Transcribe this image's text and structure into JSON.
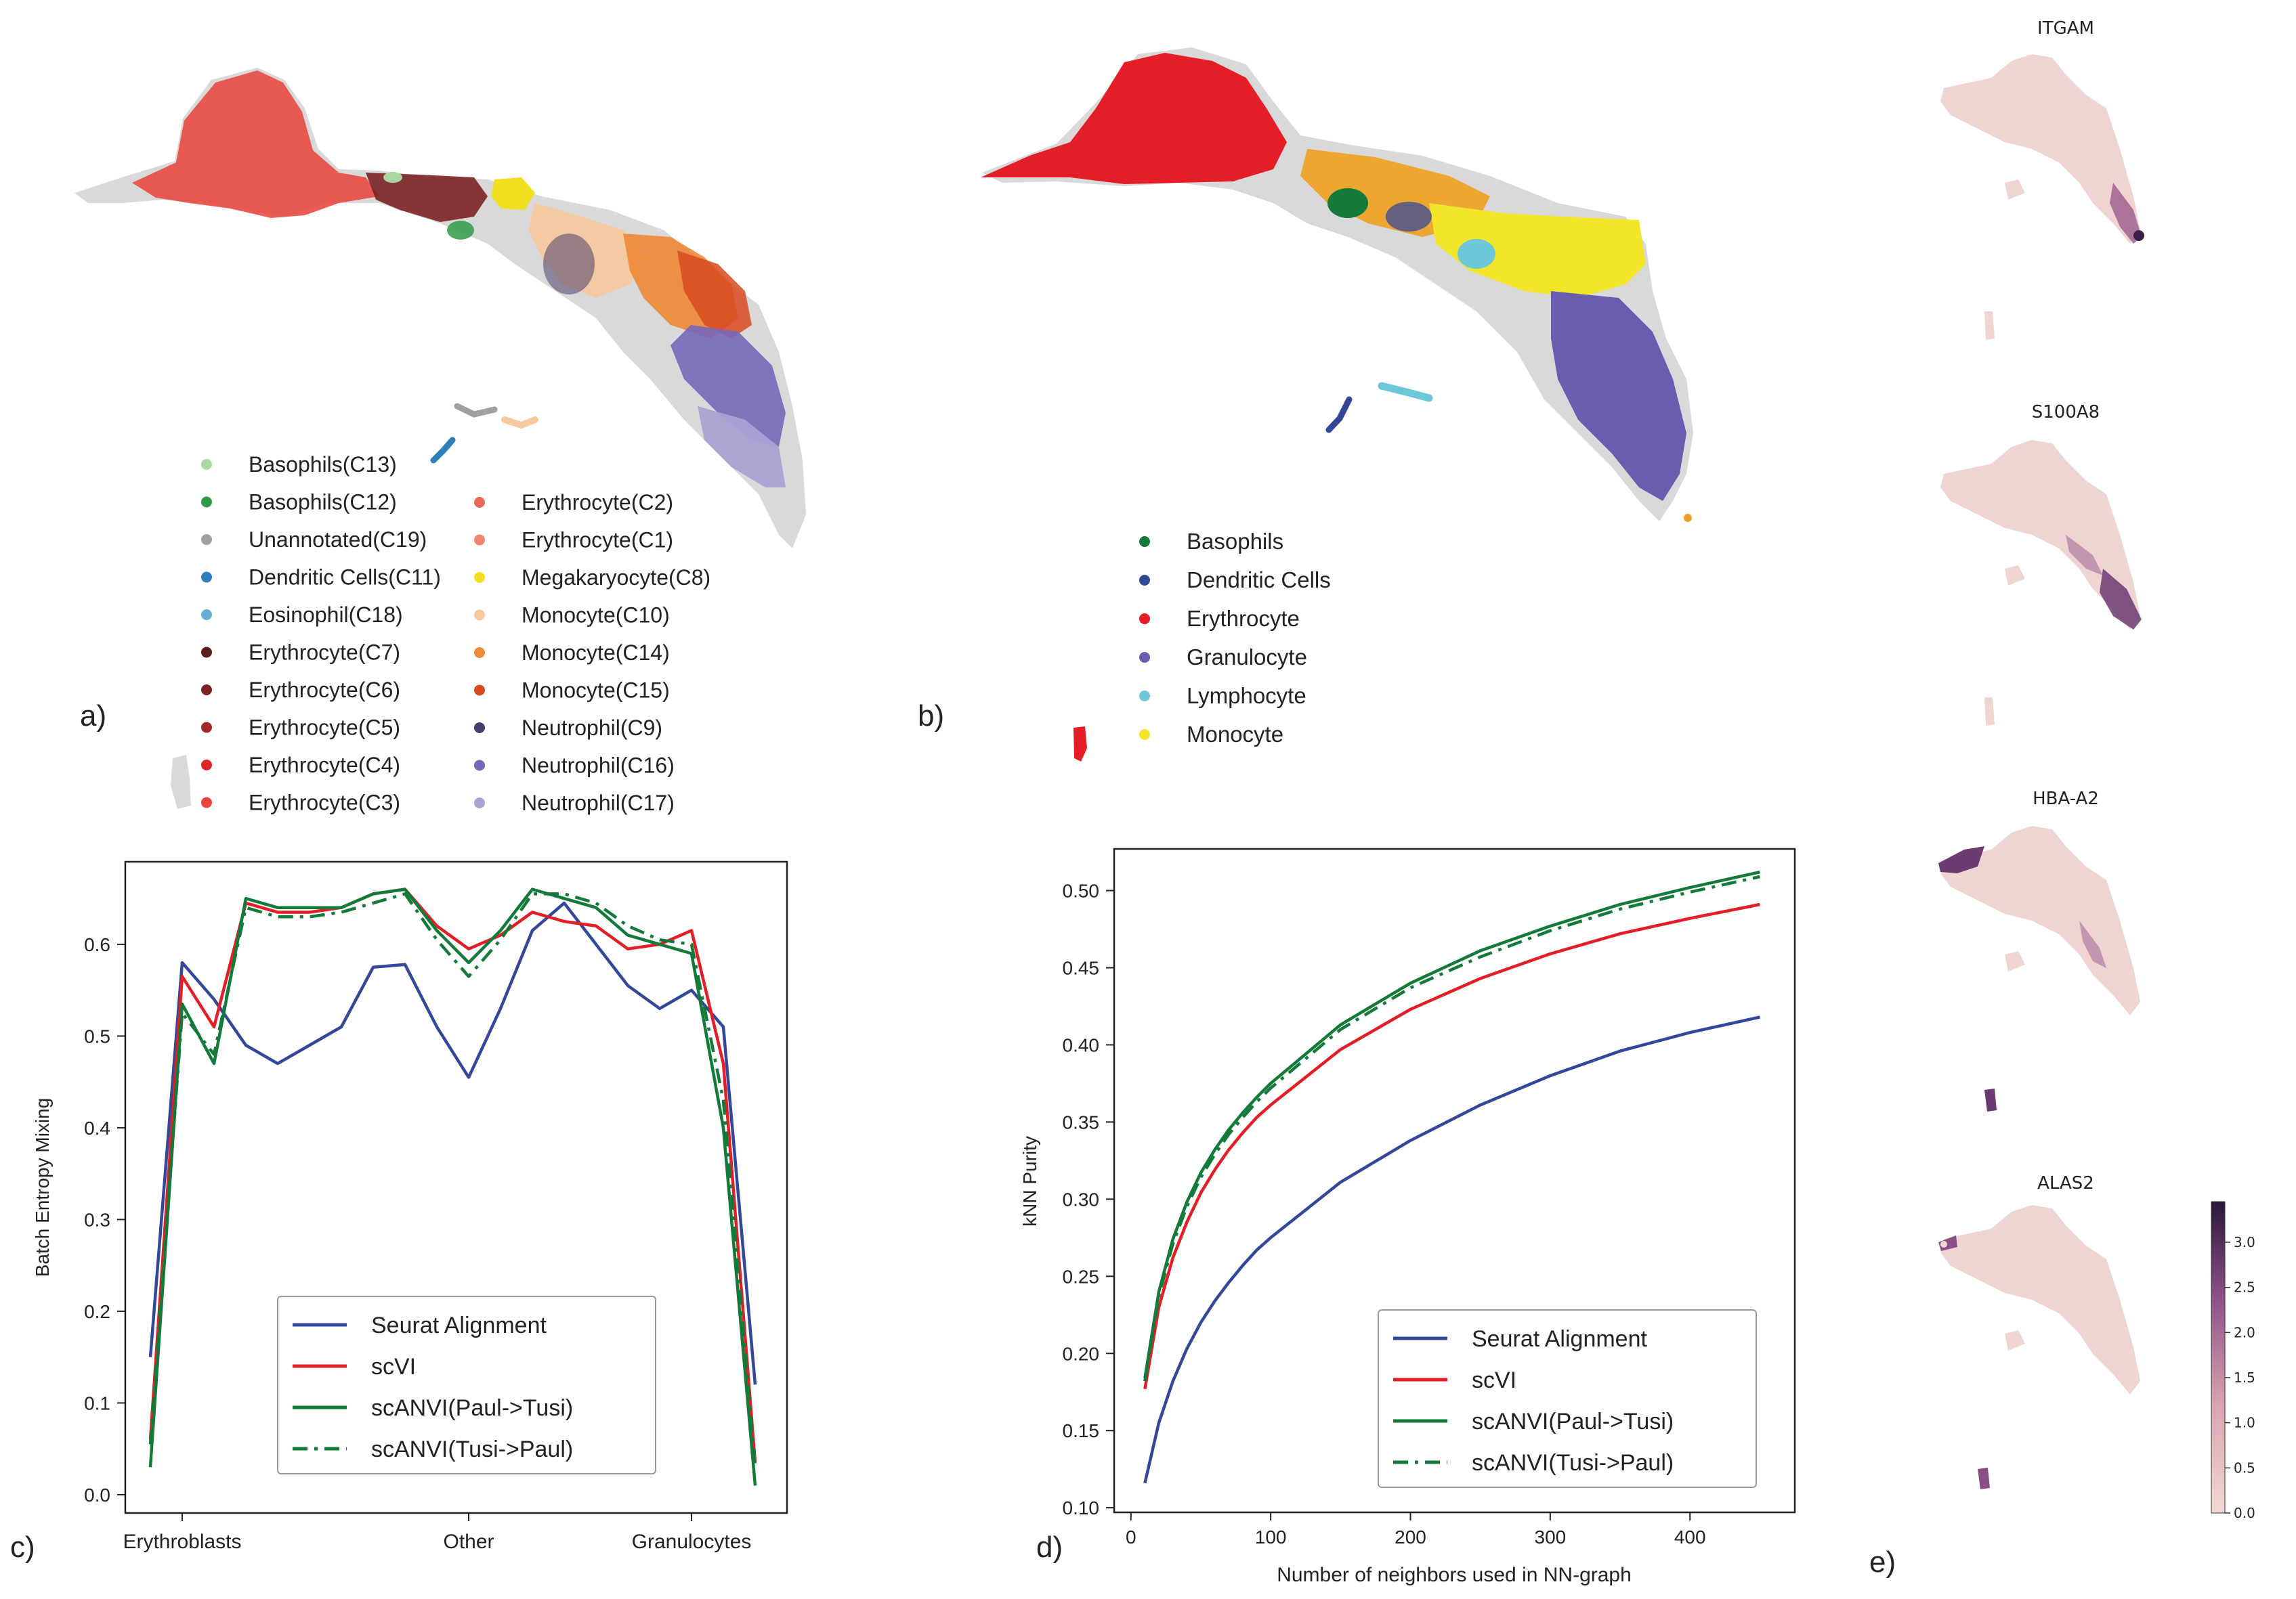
{
  "panel_labels": {
    "a": "a)",
    "b": "b)",
    "c": "c)",
    "d": "d)",
    "e": "e)"
  },
  "legend_a": [
    {
      "label": "Basophils(C13)",
      "color": "#a8d8a0"
    },
    {
      "label": "Basophils(C12)",
      "color": "#2e9a48"
    },
    {
      "label": "Unannotated(C19)",
      "color": "#a0a0a0"
    },
    {
      "label": "Dendritic Cells(C11)",
      "color": "#2f7fbd"
    },
    {
      "label": "Eosinophil(C18)",
      "color": "#6aaed6"
    },
    {
      "label": "Erythrocyte(C7)",
      "color": "#5b1f1a"
    },
    {
      "label": "Erythrocyte(C6)",
      "color": "#7b2222"
    },
    {
      "label": "Erythrocyte(C5)",
      "color": "#a52a2a"
    },
    {
      "label": "Erythrocyte(C4)",
      "color": "#e0242a"
    },
    {
      "label": "Erythrocyte(C3)",
      "color": "#e8453c"
    },
    {
      "label": "Erythrocyte(C2)",
      "color": "#e86a5a"
    },
    {
      "label": "Erythrocyte(C1)",
      "color": "#f0866e"
    },
    {
      "label": "Megakaryocyte(C8)",
      "color": "#f0e020"
    },
    {
      "label": "Monocyte(C10)",
      "color": "#f6c9a0"
    },
    {
      "label": "Monocyte(C14)",
      "color": "#ee8a3a"
    },
    {
      "label": "Monocyte(C15)",
      "color": "#d84a20"
    },
    {
      "label": "Neutrophil(C9)",
      "color": "#4a3f6e"
    },
    {
      "label": "Neutrophil(C16)",
      "color": "#7667b8"
    },
    {
      "label": "Neutrophil(C17)",
      "color": "#a9a2d4"
    }
  ],
  "legend_b": [
    {
      "label": "Basophils",
      "color": "#137a3a"
    },
    {
      "label": "Dendritic Cells",
      "color": "#34489a"
    },
    {
      "label": "Erythrocyte",
      "color": "#e41e26"
    },
    {
      "label": "Granulocyte",
      "color": "#6a5db0"
    },
    {
      "label": "Lymphocyte",
      "color": "#6cc7d8"
    },
    {
      "label": "Monocyte",
      "color": "#f3e52a"
    }
  ],
  "panel_e": {
    "titles": [
      "ITGAM",
      "S100A8",
      "HBA-A2",
      "ALAS2"
    ],
    "colorbar_ticks": [
      "3.0",
      "2.5",
      "2.0",
      "1.5",
      "1.0",
      "0.5",
      "0.0"
    ]
  },
  "chart_data": [
    {
      "id": "c",
      "type": "line",
      "ylabel": "Batch Entropy Mixing",
      "xlabel": "",
      "x_tick_labels": [
        "Erythroblasts",
        "Other",
        "Granulocytes"
      ],
      "y_ticks": [
        "0.0",
        "0.1",
        "0.2",
        "0.3",
        "0.4",
        "0.5",
        "0.6"
      ],
      "ylim": [
        -0.02,
        0.69
      ],
      "x": [
        0,
        1,
        2,
        3,
        4,
        5,
        6,
        7,
        8,
        9,
        10,
        11,
        12,
        13,
        14,
        15,
        16,
        17,
        18,
        19
      ],
      "series": [
        {
          "name": "Seurat Alignment",
          "color": "#34489a",
          "dash": "",
          "values": [
            0.15,
            0.58,
            0.54,
            0.49,
            0.47,
            0.49,
            0.51,
            0.575,
            0.578,
            0.51,
            0.455,
            0.53,
            0.615,
            0.645,
            0.6,
            0.555,
            0.53,
            0.55,
            0.51,
            0.12
          ]
        },
        {
          "name": "scVI",
          "color": "#e41e26",
          "dash": "",
          "values": [
            0.06,
            0.565,
            0.51,
            0.645,
            0.635,
            0.635,
            0.64,
            0.655,
            0.66,
            0.62,
            0.595,
            0.61,
            0.635,
            0.625,
            0.62,
            0.595,
            0.6,
            0.615,
            0.47,
            0.035
          ]
        },
        {
          "name": "scANVI(Paul->Tusi)",
          "color": "#137a3a",
          "dash": "",
          "values": [
            0.03,
            0.535,
            0.47,
            0.65,
            0.64,
            0.64,
            0.64,
            0.655,
            0.66,
            0.615,
            0.58,
            0.615,
            0.66,
            0.65,
            0.64,
            0.61,
            0.6,
            0.59,
            0.4,
            0.01
          ]
        },
        {
          "name": "scANVI(Tusi->Paul)",
          "color": "#137a3a",
          "dash": "22,10,5,10",
          "values": [
            0.055,
            0.525,
            0.48,
            0.64,
            0.63,
            0.63,
            0.635,
            0.645,
            0.655,
            0.605,
            0.565,
            0.605,
            0.655,
            0.655,
            0.645,
            0.62,
            0.605,
            0.6,
            0.43,
            0.03
          ]
        }
      ]
    },
    {
      "id": "d",
      "type": "line",
      "ylabel": "kNN Purity",
      "xlabel": "Number of neighbors used in NN-graph",
      "x_ticks": [
        "0",
        "100",
        "200",
        "300",
        "400"
      ],
      "y_ticks": [
        "0.10",
        "0.15",
        "0.20",
        "0.25",
        "0.30",
        "0.35",
        "0.40",
        "0.45",
        "0.50"
      ],
      "xlim": [
        -12,
        475
      ],
      "ylim": [
        0.097,
        0.527
      ],
      "x": [
        10,
        20,
        30,
        40,
        50,
        60,
        70,
        80,
        90,
        100,
        150,
        200,
        250,
        300,
        350,
        400,
        450
      ],
      "series": [
        {
          "name": "Seurat Alignment",
          "color": "#34489a",
          "dash": "",
          "values": [
            0.116,
            0.155,
            0.182,
            0.203,
            0.22,
            0.234,
            0.246,
            0.257,
            0.267,
            0.275,
            0.311,
            0.338,
            0.361,
            0.38,
            0.396,
            0.408,
            0.418
          ]
        },
        {
          "name": "scVI",
          "color": "#e41e26",
          "dash": "",
          "values": [
            0.177,
            0.23,
            0.262,
            0.285,
            0.304,
            0.319,
            0.332,
            0.343,
            0.353,
            0.361,
            0.397,
            0.423,
            0.443,
            0.459,
            0.472,
            0.482,
            0.491
          ]
        },
        {
          "name": "scANVI(Paul->Tusi)",
          "color": "#137a3a",
          "dash": "",
          "values": [
            0.184,
            0.24,
            0.274,
            0.298,
            0.317,
            0.332,
            0.345,
            0.356,
            0.366,
            0.375,
            0.413,
            0.44,
            0.461,
            0.477,
            0.491,
            0.502,
            0.512
          ]
        },
        {
          "name": "scANVI(Tusi->Paul)",
          "color": "#137a3a",
          "dash": "22,10,5,10",
          "values": [
            0.182,
            0.237,
            0.271,
            0.295,
            0.314,
            0.329,
            0.342,
            0.353,
            0.363,
            0.372,
            0.41,
            0.437,
            0.457,
            0.474,
            0.488,
            0.499,
            0.509
          ]
        }
      ]
    }
  ]
}
